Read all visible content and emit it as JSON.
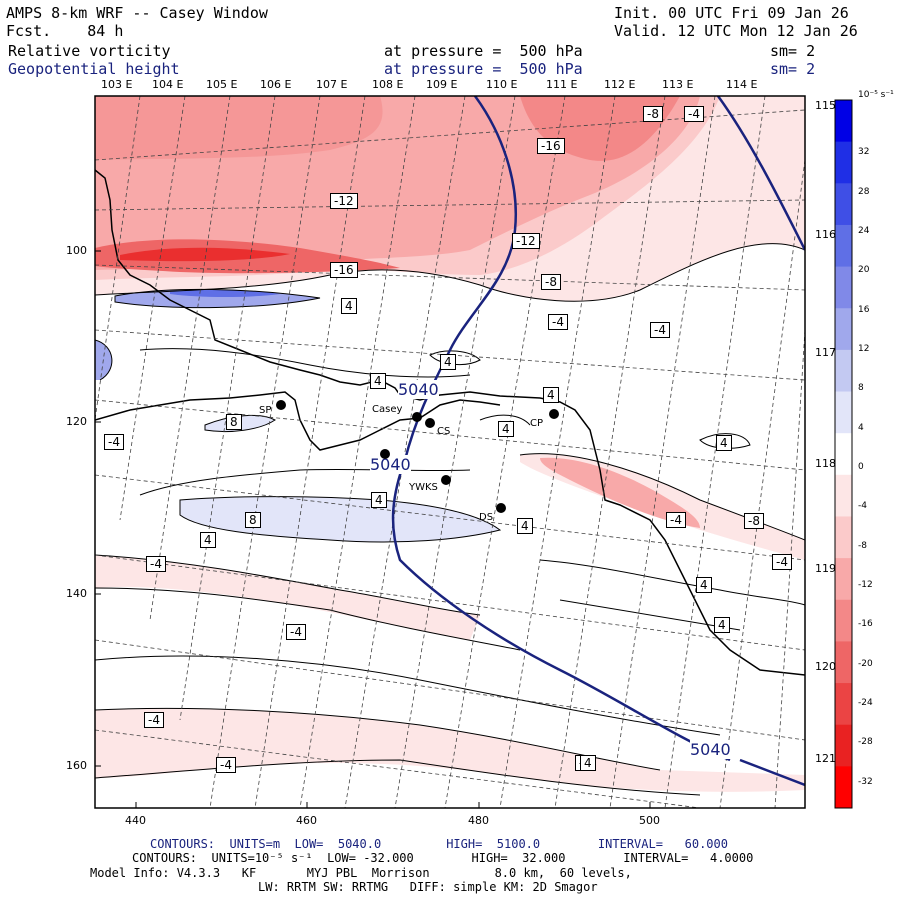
{
  "header": {
    "title": "AMPS 8-km WRF -- Casey Window",
    "forecast": "Fcst.    84 h",
    "init": "Init. 00 UTC Fri 09 Jan 26",
    "valid": "Valid. 12 UTC Mon 12 Jan 26",
    "field1_name": "Relative vorticity",
    "field1_level": "at pressure =  500 hPa",
    "field1_sm": "sm= 2",
    "field2_name": "Geopotential height",
    "field2_level": "at pressure =  500 hPa",
    "field2_sm": "sm= 2"
  },
  "longitude_labels_top": [
    "103 E",
    "104 E",
    "105 E",
    "106 E",
    "107 E",
    "108 E",
    "109 E",
    "110 E",
    "111 E",
    "112 E",
    "113 E",
    "114 E"
  ],
  "longitude_labels_right": [
    "115 E",
    "116 E",
    "117 E",
    "118 E",
    "119 E",
    "120 E",
    "121 E"
  ],
  "grid_y_labels": [
    "100",
    "120",
    "140",
    "160"
  ],
  "grid_x_labels": [
    "440",
    "460",
    "480",
    "500"
  ],
  "colorbar": {
    "unit": "10⁻⁵ s⁻¹",
    "ticks": [
      "32",
      "28",
      "24",
      "20",
      "16",
      "12",
      "8",
      "4",
      "0",
      "-4",
      "-8",
      "-12",
      "-16",
      "-20",
      "-24",
      "-28",
      "-32"
    ],
    "colors_top_to_bottom": [
      "#0000e6",
      "#1f2fe6",
      "#3f4fe6",
      "#5f6fe6",
      "#8089e8",
      "#a0a8ec",
      "#c3c9f2",
      "#e2e5f9",
      "#ffffff",
      "#fde6e6",
      "#fbcaca",
      "#f8a9a9",
      "#f38888",
      "#ee6666",
      "#eb4444",
      "#e92222",
      "#ff0000"
    ]
  },
  "contour_labels": {
    "vorticity": [
      "-8",
      "-4",
      "-16",
      "-12",
      "-12",
      "-16",
      "-8",
      "-4",
      "-4",
      "4",
      "4",
      "4",
      "4",
      "4",
      "8",
      "-4",
      "4",
      "4",
      "4",
      "8",
      "-4",
      "4",
      "-8",
      "-4",
      "-4",
      "4",
      "4",
      "-4",
      "-4",
      "-4",
      "-4",
      "4"
    ],
    "height": [
      "5040",
      "5040",
      "5040"
    ]
  },
  "stations": [
    {
      "name": "SP"
    },
    {
      "name": "Casey"
    },
    {
      "name": "CS"
    },
    {
      "name": "CP"
    },
    {
      "name": "YWKS"
    },
    {
      "name": "DS"
    }
  ],
  "footer": {
    "contours1": "CONTOURS:  UNITS=m  LOW=  5040.0         HIGH=  5100.0        INTERVAL=   60.000",
    "contours2": "CONTOURS:  UNITS=10⁻⁵ s⁻¹  LOW= -32.000        HIGH=  32.000        INTERVAL=   4.0000",
    "model": "Model Info: V4.3.3   KF       MYJ PBL  Morrison         8.0 km,  60 levels,",
    "model2": "LW: RRTM SW: RRTMG   DIFF: simple KM: 2D Smagor"
  }
}
